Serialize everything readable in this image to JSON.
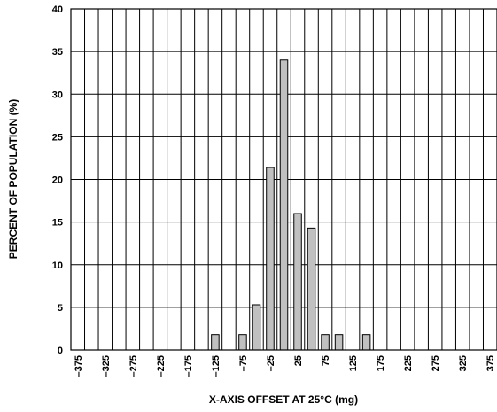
{
  "chart_data": {
    "type": "bar",
    "xlabel": "X-AXIS OFFSET AT 25°C (mg)",
    "ylabel": "PERCENT OF POPULATION (%)",
    "x_tick_labels": [
      "–375",
      "–325",
      "–275",
      "–225",
      "–175",
      "–125",
      "–75",
      "–25",
      "25",
      "75",
      "125",
      "175",
      "225",
      "275",
      "325",
      "375"
    ],
    "x_ticks": [
      -375,
      -325,
      -275,
      -225,
      -175,
      -125,
      -75,
      -25,
      25,
      75,
      125,
      175,
      225,
      275,
      325,
      375
    ],
    "y_tick_labels": [
      "0",
      "5",
      "10",
      "15",
      "20",
      "25",
      "30",
      "35",
      "40"
    ],
    "y_ticks": [
      0,
      5,
      10,
      15,
      20,
      25,
      30,
      35,
      40
    ],
    "xlim": [
      -375,
      375
    ],
    "ylim": [
      0,
      40
    ],
    "grid": true,
    "bin_width": 25,
    "bars": [
      {
        "x": -125,
        "value": 1.8
      },
      {
        "x": -75,
        "value": 1.8
      },
      {
        "x": -50,
        "value": 5.3
      },
      {
        "x": -25,
        "value": 21.4
      },
      {
        "x": 0,
        "value": 34.0
      },
      {
        "x": 25,
        "value": 16.0
      },
      {
        "x": 50,
        "value": 14.3
      },
      {
        "x": 75,
        "value": 1.8
      },
      {
        "x": 100,
        "value": 1.8
      },
      {
        "x": 150,
        "value": 1.8
      }
    ]
  }
}
